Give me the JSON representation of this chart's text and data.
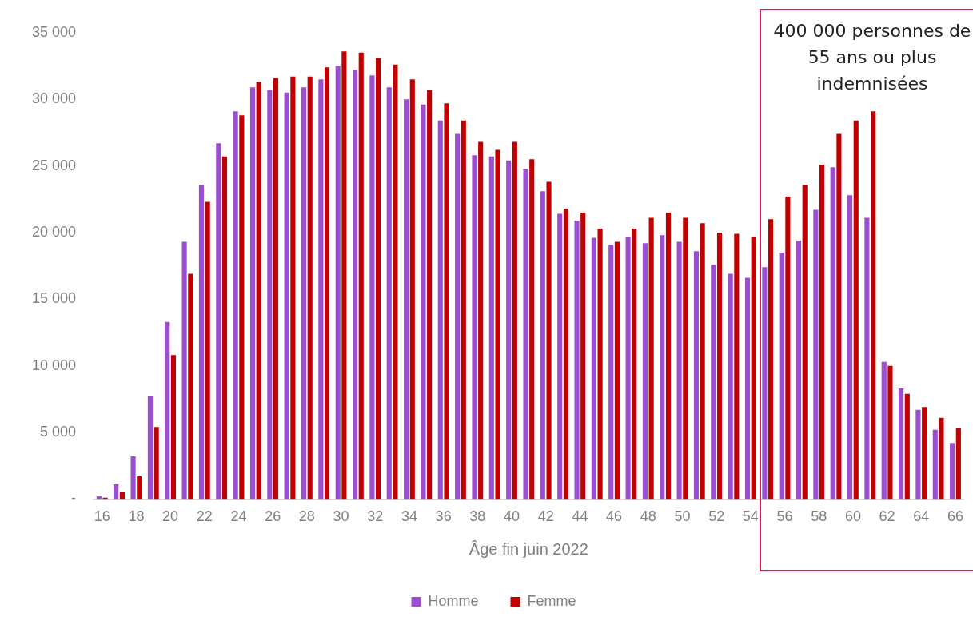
{
  "chart_data": {
    "type": "bar",
    "xlabel": "Âge fin juin 2022",
    "categories": [
      "16",
      null,
      "18",
      null,
      "20",
      null,
      "22",
      null,
      "24",
      null,
      "26",
      null,
      "28",
      null,
      "30",
      null,
      "32",
      null,
      "34",
      null,
      "36",
      null,
      "38",
      null,
      "40",
      null,
      "42",
      null,
      "44",
      null,
      "46",
      null,
      "48",
      null,
      "50",
      null,
      "52",
      null,
      "54",
      null,
      "56",
      null,
      "58",
      null,
      "60",
      null,
      "62",
      null,
      "64",
      null,
      "66"
    ],
    "series": [
      {
        "name": "Homme",
        "color": "#9b4fcf",
        "values": [
          200,
          1100,
          3200,
          7700,
          13300,
          19300,
          23600,
          26700,
          29100,
          30900,
          30700,
          30500,
          30900,
          31500,
          32500,
          32200,
          31800,
          30900,
          30000,
          29600,
          28400,
          27400,
          25800,
          25700,
          25400,
          24800,
          23100,
          21400,
          20900,
          19600,
          19100,
          19700,
          19200,
          19800,
          19300,
          18600,
          17600,
          16900,
          16600,
          17400,
          18500,
          19400,
          21700,
          24900,
          22800,
          21100,
          10300,
          8300,
          6700,
          5200,
          4200
        ]
      },
      {
        "name": "Femme",
        "color": "#c00000",
        "values": [
          100,
          500,
          1700,
          5400,
          10800,
          16900,
          22300,
          25700,
          28800,
          31300,
          31600,
          31700,
          31700,
          32400,
          33600,
          33500,
          33100,
          32600,
          31500,
          30700,
          29700,
          28400,
          26800,
          26200,
          26800,
          25500,
          23800,
          21800,
          21500,
          20300,
          19300,
          20300,
          21100,
          21500,
          21100,
          20700,
          20000,
          19900,
          19700,
          21000,
          22700,
          23600,
          25100,
          27400,
          28400,
          29100,
          10000,
          7900,
          6900,
          6100,
          5300
        ]
      }
    ],
    "ylim": [
      0,
      35000
    ],
    "yticks": [
      {
        "value": 0,
        "label": "-"
      },
      {
        "value": 5000,
        "label": "5 000"
      },
      {
        "value": 10000,
        "label": "10 000"
      },
      {
        "value": 15000,
        "label": "15 000"
      },
      {
        "value": 20000,
        "label": "20 000"
      },
      {
        "value": 25000,
        "label": "25 000"
      },
      {
        "value": 30000,
        "label": "30 000"
      },
      {
        "value": 35000,
        "label": "35 000"
      }
    ],
    "grid": false,
    "legend": "bottom",
    "annotations": [
      "400 000 personnes de 55 ans ou plus indemnisées"
    ]
  }
}
